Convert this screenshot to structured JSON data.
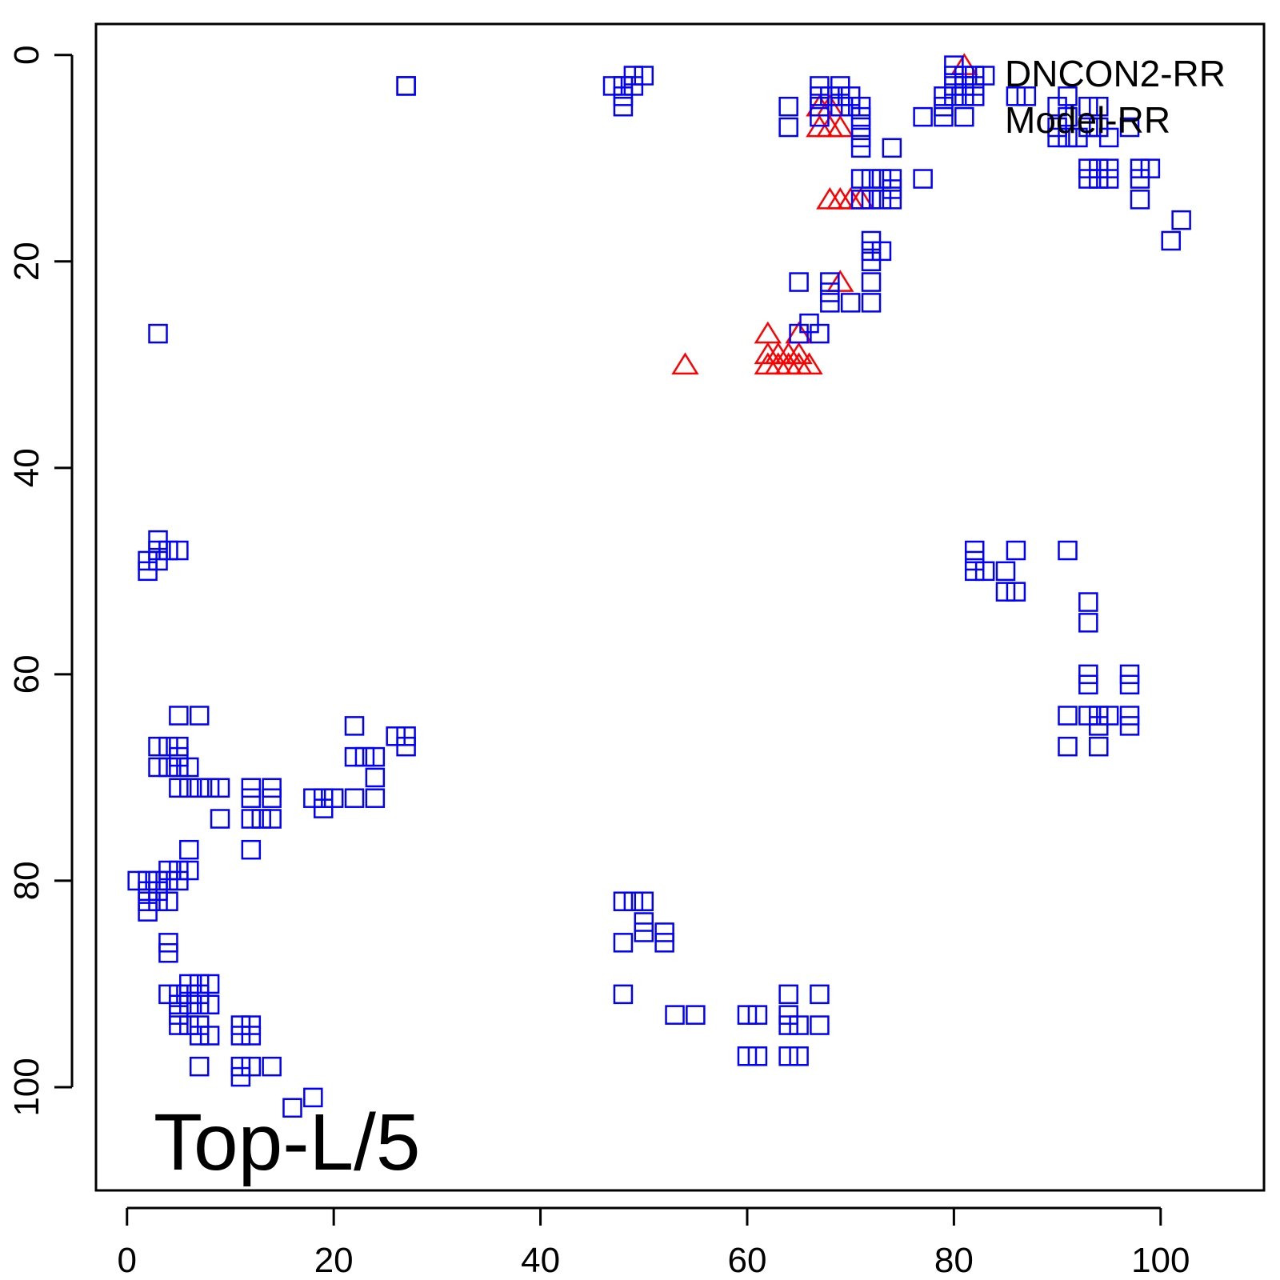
{
  "chart_data": {
    "type": "scatter",
    "title": "",
    "xlabel": "",
    "ylabel": "",
    "panel_label": "Top-L/5",
    "xlim": [
      -3,
      110
    ],
    "ylim": [
      -3,
      110
    ],
    "y_reversed": true,
    "x_ticks": [
      "0",
      "20",
      "40",
      "60",
      "80",
      "100"
    ],
    "y_ticks": [
      "0",
      "20",
      "40",
      "60",
      "80",
      "100"
    ],
    "grid": false,
    "legend_position": "top-right",
    "colors": {
      "DNCON2-RR": "#ff0000",
      "Model-RR": "#0000ff"
    },
    "series": [
      {
        "name": "DNCON2-RR",
        "marker": "triangle",
        "points": [
          [
            81,
            1
          ],
          [
            67,
            5
          ],
          [
            68,
            5
          ],
          [
            67,
            7
          ],
          [
            68,
            7
          ],
          [
            69,
            7
          ],
          [
            68,
            14
          ],
          [
            69,
            14
          ],
          [
            70,
            14
          ],
          [
            71,
            14
          ],
          [
            69,
            22
          ],
          [
            54,
            30
          ],
          [
            62,
            27
          ],
          [
            65,
            27
          ],
          [
            62,
            29
          ],
          [
            63,
            29
          ],
          [
            64,
            29
          ],
          [
            65,
            29
          ],
          [
            62,
            30
          ],
          [
            63,
            30
          ],
          [
            64,
            30
          ],
          [
            65,
            30
          ],
          [
            66,
            30
          ]
        ]
      },
      {
        "name": "Model-RR",
        "marker": "square",
        "points": [
          [
            27,
            3
          ],
          [
            47,
            3
          ],
          [
            48,
            3
          ],
          [
            49,
            3
          ],
          [
            48,
            4
          ],
          [
            48,
            5
          ],
          [
            49,
            2
          ],
          [
            50,
            2
          ],
          [
            67,
            3
          ],
          [
            69,
            3
          ],
          [
            67,
            4
          ],
          [
            68,
            4
          ],
          [
            69,
            4
          ],
          [
            70,
            4
          ],
          [
            67,
            5
          ],
          [
            69,
            5
          ],
          [
            70,
            5
          ],
          [
            64,
            5
          ],
          [
            64,
            7
          ],
          [
            67,
            6
          ],
          [
            71,
            5
          ],
          [
            71,
            6
          ],
          [
            71,
            7
          ],
          [
            71,
            8
          ],
          [
            71,
            9
          ],
          [
            80,
            1
          ],
          [
            80,
            2
          ],
          [
            81,
            2
          ],
          [
            82,
            2
          ],
          [
            83,
            2
          ],
          [
            80,
            3
          ],
          [
            81,
            3
          ],
          [
            82,
            3
          ],
          [
            79,
            4
          ],
          [
            80,
            4
          ],
          [
            81,
            4
          ],
          [
            82,
            4
          ],
          [
            79,
            5
          ],
          [
            79,
            6
          ],
          [
            77,
            6
          ],
          [
            81,
            6
          ],
          [
            86,
            4
          ],
          [
            87,
            4
          ],
          [
            90,
            5
          ],
          [
            91,
            4
          ],
          [
            91,
            6
          ],
          [
            90,
            7
          ],
          [
            90,
            8
          ],
          [
            91,
            8
          ],
          [
            92,
            8
          ],
          [
            93,
            5
          ],
          [
            94,
            5
          ],
          [
            93,
            7
          ],
          [
            94,
            7
          ],
          [
            95,
            8
          ],
          [
            97,
            7
          ],
          [
            93,
            11
          ],
          [
            94,
            11
          ],
          [
            95,
            11
          ],
          [
            93,
            12
          ],
          [
            94,
            12
          ],
          [
            95,
            12
          ],
          [
            98,
            11
          ],
          [
            99,
            11
          ],
          [
            98,
            12
          ],
          [
            98,
            14
          ],
          [
            102,
            16
          ],
          [
            101,
            18
          ],
          [
            74,
            9
          ],
          [
            77,
            12
          ],
          [
            71,
            12
          ],
          [
            72,
            12
          ],
          [
            73,
            12
          ],
          [
            74,
            12
          ],
          [
            71,
            14
          ],
          [
            72,
            14
          ],
          [
            73,
            14
          ],
          [
            74,
            14
          ],
          [
            74,
            13
          ],
          [
            72,
            18
          ],
          [
            72,
            19
          ],
          [
            73,
            19
          ],
          [
            72,
            20
          ],
          [
            72,
            22
          ],
          [
            72,
            24
          ],
          [
            65,
            22
          ],
          [
            68,
            22
          ],
          [
            68,
            23
          ],
          [
            68,
            24
          ],
          [
            70,
            24
          ],
          [
            66,
            26
          ],
          [
            65,
            27
          ],
          [
            67,
            27
          ],
          [
            3,
            27
          ],
          [
            27,
            3
          ],
          [
            3,
            47
          ],
          [
            3,
            48
          ],
          [
            4,
            48
          ],
          [
            5,
            48
          ],
          [
            2,
            49
          ],
          [
            3,
            49
          ],
          [
            2,
            50
          ],
          [
            82,
            48
          ],
          [
            82,
            49
          ],
          [
            82,
            50
          ],
          [
            83,
            50
          ],
          [
            85,
            50
          ],
          [
            86,
            48
          ],
          [
            85,
            52
          ],
          [
            86,
            52
          ],
          [
            91,
            48
          ],
          [
            93,
            53
          ],
          [
            93,
            55
          ],
          [
            93,
            60
          ],
          [
            93,
            61
          ],
          [
            97,
            60
          ],
          [
            97,
            61
          ],
          [
            91,
            64
          ],
          [
            93,
            64
          ],
          [
            94,
            64
          ],
          [
            95,
            64
          ],
          [
            94,
            65
          ],
          [
            94,
            67
          ],
          [
            91,
            67
          ],
          [
            97,
            64
          ],
          [
            97,
            65
          ],
          [
            5,
            64
          ],
          [
            7,
            64
          ],
          [
            22,
            65
          ],
          [
            3,
            67
          ],
          [
            4,
            67
          ],
          [
            5,
            67
          ],
          [
            3,
            69
          ],
          [
            4,
            69
          ],
          [
            5,
            68
          ],
          [
            5,
            69
          ],
          [
            6,
            69
          ],
          [
            5,
            71
          ],
          [
            6,
            71
          ],
          [
            7,
            71
          ],
          [
            9,
            71
          ],
          [
            8,
            71
          ],
          [
            12,
            71
          ],
          [
            14,
            71
          ],
          [
            12,
            72
          ],
          [
            14,
            72
          ],
          [
            12,
            74
          ],
          [
            13,
            74
          ],
          [
            14,
            74
          ],
          [
            9,
            74
          ],
          [
            12,
            77
          ],
          [
            18,
            72
          ],
          [
            19,
            72
          ],
          [
            20,
            72
          ],
          [
            19,
            73
          ],
          [
            22,
            72
          ],
          [
            24,
            72
          ],
          [
            24,
            70
          ],
          [
            22,
            68
          ],
          [
            23,
            68
          ],
          [
            24,
            68
          ],
          [
            26,
            66
          ],
          [
            27,
            66
          ],
          [
            27,
            67
          ],
          [
            6,
            77
          ],
          [
            4,
            79
          ],
          [
            5,
            79
          ],
          [
            6,
            79
          ],
          [
            1,
            80
          ],
          [
            2,
            80
          ],
          [
            3,
            80
          ],
          [
            4,
            80
          ],
          [
            5,
            80
          ],
          [
            2,
            81
          ],
          [
            3,
            81
          ],
          [
            2,
            82
          ],
          [
            3,
            82
          ],
          [
            4,
            82
          ],
          [
            2,
            83
          ],
          [
            4,
            86
          ],
          [
            4,
            87
          ],
          [
            4,
            91
          ],
          [
            5,
            91
          ],
          [
            6,
            91
          ],
          [
            7,
            91
          ],
          [
            6,
            90
          ],
          [
            7,
            90
          ],
          [
            8,
            90
          ],
          [
            5,
            92
          ],
          [
            6,
            92
          ],
          [
            7,
            92
          ],
          [
            8,
            92
          ],
          [
            5,
            93
          ],
          [
            6,
            94
          ],
          [
            5,
            94
          ],
          [
            7,
            94
          ],
          [
            7,
            95
          ],
          [
            8,
            95
          ],
          [
            7,
            98
          ],
          [
            11,
            95
          ],
          [
            12,
            95
          ],
          [
            11,
            94
          ],
          [
            12,
            94
          ],
          [
            11,
            98
          ],
          [
            12,
            98
          ],
          [
            14,
            98
          ],
          [
            11,
            99
          ],
          [
            16,
            102
          ],
          [
            18,
            101
          ],
          [
            48,
            82
          ],
          [
            49,
            82
          ],
          [
            50,
            82
          ],
          [
            50,
            84
          ],
          [
            50,
            85
          ],
          [
            52,
            85
          ],
          [
            52,
            86
          ],
          [
            48,
            86
          ],
          [
            48,
            91
          ],
          [
            53,
            93
          ],
          [
            55,
            93
          ],
          [
            60,
            93
          ],
          [
            61,
            93
          ],
          [
            64,
            91
          ],
          [
            64,
            93
          ],
          [
            64,
            94
          ],
          [
            65,
            94
          ],
          [
            67,
            94
          ],
          [
            67,
            91
          ],
          [
            60,
            97
          ],
          [
            61,
            97
          ],
          [
            64,
            97
          ],
          [
            65,
            97
          ]
        ]
      }
    ]
  }
}
